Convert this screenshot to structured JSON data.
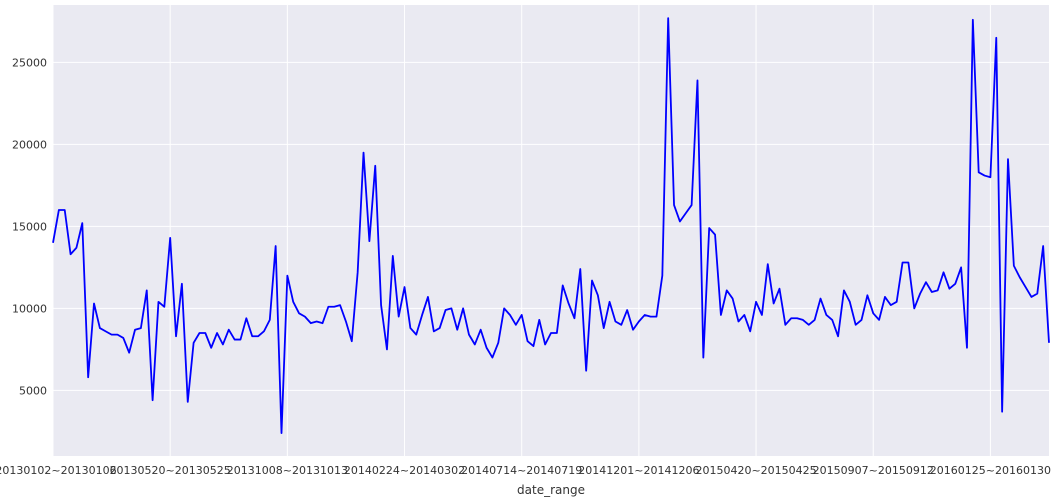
{
  "chart_data": {
    "type": "line",
    "xlabel": "date_range",
    "ylabel": "",
    "ylim": [
      1000,
      28500
    ],
    "grid": true,
    "legend": "none",
    "colors": {
      "background": "#eaeaf2",
      "grid": "#ffffff",
      "line": "#0000ff",
      "text": "#333333"
    },
    "x_tick_labels": [
      {
        "index": 0,
        "label": "20130102~20130106"
      },
      {
        "index": 20,
        "label": "20130520~20130525"
      },
      {
        "index": 40,
        "label": "20131008~20131013"
      },
      {
        "index": 60,
        "label": "20140224~20140302"
      },
      {
        "index": 80,
        "label": "20140714~20140719"
      },
      {
        "index": 100,
        "label": "20141201~20141206"
      },
      {
        "index": 120,
        "label": "20150420~20150425"
      },
      {
        "index": 140,
        "label": "20150907~20150912"
      },
      {
        "index": 160,
        "label": "20160125~20160130"
      }
    ],
    "y_ticks": [
      5000,
      10000,
      15000,
      20000,
      25000
    ],
    "series": [
      {
        "values": [
          14000,
          16000,
          16000,
          13300,
          13700,
          15200,
          5800,
          10300,
          8800,
          8600,
          8400,
          8400,
          8200,
          7300,
          8700,
          8800,
          11100,
          4400,
          10400,
          10100,
          14300,
          8300,
          11500,
          4300,
          7900,
          8500,
          8500,
          7600,
          8500,
          7800,
          8700,
          8100,
          8100,
          9400,
          8300,
          8300,
          8600,
          9300,
          13800,
          2400,
          12000,
          10400,
          9700,
          9500,
          9100,
          9200,
          9100,
          10100,
          10100,
          10200,
          9200,
          8000,
          12200,
          19500,
          14100,
          18700,
          10200,
          7500,
          13200,
          9500,
          11300,
          8800,
          8400,
          9600,
          10700,
          8600,
          8800,
          9900,
          10000,
          8700,
          10000,
          8400,
          7800,
          8700,
          7600,
          7000,
          7900,
          10000,
          9600,
          9000,
          9600,
          8000,
          7700,
          9300,
          7800,
          8500,
          8500,
          11400,
          10300,
          9400,
          12400,
          6200,
          11700,
          10800,
          8800,
          10400,
          9200,
          9000,
          9900,
          8700,
          9200,
          9600,
          9500,
          9500,
          12000,
          27700,
          16300,
          15300,
          15800,
          16300,
          23900,
          7000,
          14900,
          14500,
          9600,
          11100,
          10600,
          9200,
          9600,
          8600,
          10400,
          9600,
          12700,
          10300,
          11200,
          9000,
          9400,
          9400,
          9300,
          9000,
          9300,
          10600,
          9600,
          9300,
          8300,
          11100,
          10400,
          9000,
          9300,
          10800,
          9700,
          9300,
          10700,
          10200,
          10400,
          12800,
          12800,
          10000,
          10900,
          11600,
          11000,
          11100,
          12200,
          11200,
          11500,
          12500,
          7600,
          27600,
          18300,
          18100,
          18000,
          26500,
          3700,
          19100,
          12600,
          11900,
          11300,
          10700,
          10900,
          13800,
          7900
        ]
      }
    ]
  }
}
